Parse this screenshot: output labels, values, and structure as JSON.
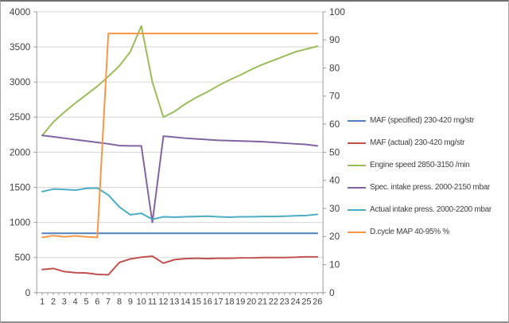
{
  "chart_data": {
    "type": "line",
    "title": "",
    "xlabel": "",
    "ylabel_left": "",
    "ylabel_right": "",
    "grid": "horizontal gridlines from left axis",
    "legend_position": "right",
    "x_labels": [
      "1",
      "2",
      "3",
      "4",
      "5",
      "6",
      "7",
      "8",
      "9",
      "10",
      "11",
      "12",
      "13",
      "14",
      "15",
      "16",
      "17",
      "18",
      "19",
      "20",
      "21",
      "22",
      "23",
      "24",
      "25",
      "26"
    ],
    "left_axis": {
      "min": 0,
      "max": 4000,
      "step": 500,
      "tick_labels": [
        "0",
        "500",
        "1000",
        "1500",
        "2000",
        "2500",
        "3000",
        "3500",
        "4000"
      ]
    },
    "right_axis": {
      "min": 0,
      "max": 100,
      "step": 10,
      "tick_labels": [
        "0",
        "10",
        "20",
        "30",
        "40",
        "50",
        "60",
        "70",
        "80",
        "90",
        "100"
      ]
    },
    "series": [
      {
        "id": "maf-specified",
        "name": "MAF (specified) 230-420  mg/str",
        "color": "#4F81BD",
        "axis": "left",
        "values": [
          845,
          845,
          845,
          845,
          845,
          845,
          845,
          845,
          845,
          845,
          845,
          845,
          845,
          845,
          845,
          845,
          845,
          845,
          845,
          845,
          845,
          845,
          845,
          845,
          845,
          845
        ]
      },
      {
        "id": "maf-actual",
        "name": "MAF (actual) 230-420  mg/str",
        "color": "#C0504D",
        "axis": "left",
        "values": [
          330,
          345,
          300,
          285,
          280,
          260,
          255,
          430,
          480,
          505,
          520,
          420,
          470,
          485,
          490,
          485,
          490,
          490,
          495,
          495,
          500,
          500,
          500,
          505,
          510,
          510
        ]
      },
      {
        "id": "engine-speed",
        "name": "Engine speed 2850-3150  /min",
        "color": "#9BBB59",
        "axis": "left",
        "values": [
          2240,
          2430,
          2570,
          2700,
          2820,
          2940,
          3080,
          3230,
          3430,
          3800,
          3000,
          2500,
          2580,
          2690,
          2780,
          2860,
          2950,
          3030,
          3100,
          3180,
          3250,
          3310,
          3370,
          3430,
          3470,
          3510
        ]
      },
      {
        "id": "spec-intake-press",
        "name": "Spec. intake press. 2000-2150  mbar",
        "color": "#8064A2",
        "axis": "left",
        "values": [
          2240,
          2220,
          2200,
          2180,
          2160,
          2140,
          2120,
          2095,
          2090,
          2090,
          1000,
          2230,
          2215,
          2200,
          2190,
          2180,
          2170,
          2165,
          2160,
          2155,
          2150,
          2140,
          2130,
          2120,
          2110,
          2090
        ]
      },
      {
        "id": "actual-intake-press",
        "name": "Actual intake press. 2000-2200  mbar",
        "color": "#4BACC6",
        "axis": "left",
        "values": [
          1440,
          1475,
          1470,
          1460,
          1485,
          1490,
          1390,
          1220,
          1110,
          1130,
          1045,
          1080,
          1075,
          1080,
          1085,
          1090,
          1080,
          1075,
          1080,
          1080,
          1085,
          1085,
          1090,
          1095,
          1100,
          1115
        ]
      },
      {
        "id": "dcycle-map",
        "name": "D.cycle MAP 40-95%  %",
        "color": "#F79646",
        "axis": "right",
        "values": [
          19.7,
          20.3,
          19.9,
          20.2,
          19.9,
          19.7,
          92.3,
          92.3,
          92.3,
          92.3,
          92.3,
          92.3,
          92.3,
          92.3,
          92.3,
          92.3,
          92.3,
          92.3,
          92.3,
          92.3,
          92.3,
          92.3,
          92.3,
          92.3,
          92.3,
          92.3
        ]
      }
    ],
    "colors": {
      "gridline": "#d6d6d6",
      "axis_line": "#9b9b9b",
      "label_text": "#404040",
      "background": "#ffffff"
    }
  }
}
